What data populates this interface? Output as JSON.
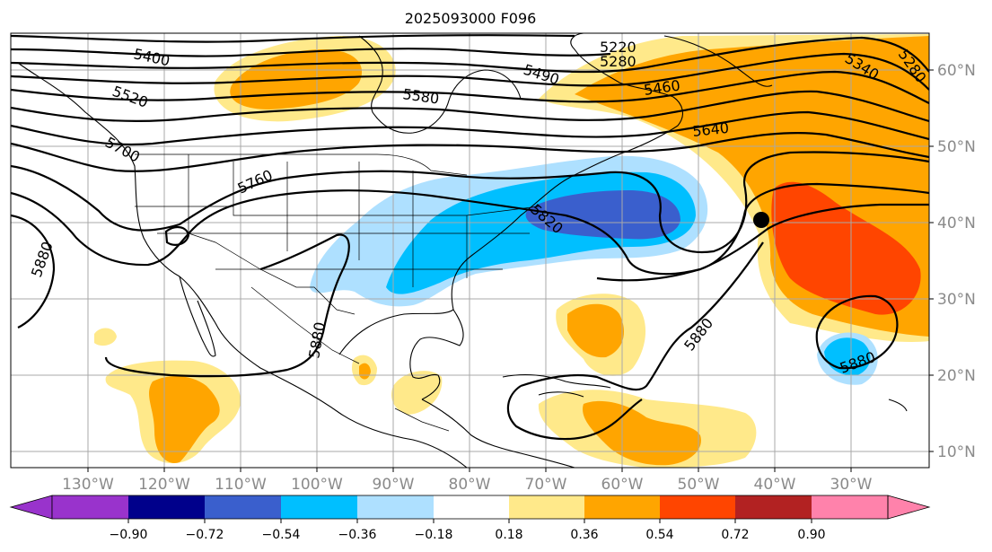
{
  "title": "2025093000 F096",
  "lon_labels": [
    "130°W",
    "120°W",
    "110°W",
    "100°W",
    "90°W",
    "80°W",
    "70°W",
    "60°W",
    "50°W",
    "40°W",
    "30°W"
  ],
  "lat_labels": [
    "60°N",
    "50°N",
    "40°N",
    "30°N",
    "20°N",
    "10°N"
  ],
  "colorbar": {
    "tick_labels": [
      "−0.90",
      "−0.72",
      "−0.54",
      "−0.36",
      "−0.18",
      "0.18",
      "0.36",
      "0.54",
      "0.72",
      "0.90"
    ],
    "colors": [
      "#9933cc",
      "#00008b",
      "#3a5fcd",
      "#00bfff",
      "#aee0ff",
      "#ffffff",
      "#ffe98a",
      "#ffa500",
      "#ff4500",
      "#b22222",
      "#ff82ab"
    ]
  },
  "contour_labels": [
    "5400",
    "5220",
    "5280",
    "5490",
    "5340",
    "5280",
    "5520",
    "5580",
    "5460",
    "5640",
    "5700",
    "5760",
    "5820",
    "5880",
    "5880",
    "5880",
    "5880"
  ],
  "marker": {
    "name": "center-dot",
    "lon": "42°W",
    "lat": "40.5°N"
  }
}
